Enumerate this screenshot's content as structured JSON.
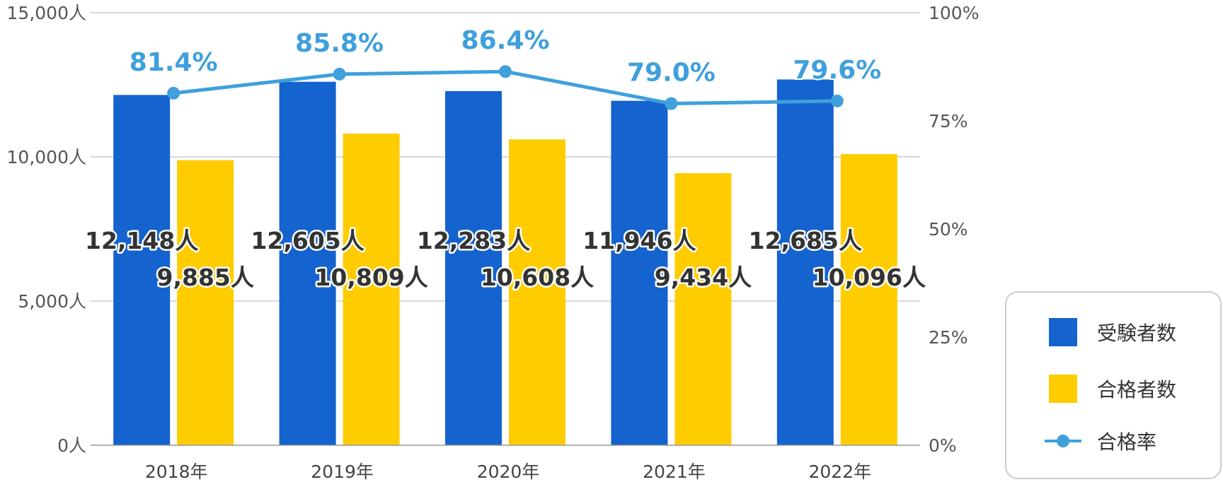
{
  "colors": {
    "examinees": "#1463CE",
    "passers": "#FFCC00",
    "rate": "#3FA0DC",
    "grid": "#cccccc"
  },
  "chart_data": {
    "type": "bar",
    "categories": [
      "2018年",
      "2019年",
      "2020年",
      "2021年",
      "2022年"
    ],
    "series": [
      {
        "name": "受験者数",
        "kind": "bar",
        "axis": "left",
        "values": [
          12148,
          12605,
          12283,
          11946,
          12685
        ],
        "labels": [
          "12,148人",
          "12,605人",
          "12,283人",
          "11,946人",
          "12,685人"
        ]
      },
      {
        "name": "合格者数",
        "kind": "bar",
        "axis": "left",
        "values": [
          9885,
          10809,
          10608,
          9434,
          10096
        ],
        "labels": [
          "9,885人",
          "10,809人",
          "10,608人",
          "9,434人",
          "10,096人"
        ]
      },
      {
        "name": "合格率",
        "kind": "line",
        "axis": "right",
        "values": [
          81.4,
          85.8,
          86.4,
          79.0,
          79.6
        ],
        "labels": [
          "81.4%",
          "85.8%",
          "86.4%",
          "79.0%",
          "79.6%"
        ]
      }
    ],
    "y_left": {
      "ylim": [
        0,
        15000
      ],
      "ticks": [
        0,
        5000,
        10000,
        15000
      ],
      "tick_labels": [
        "0人",
        "5,000人",
        "10,000人",
        "15,000人"
      ]
    },
    "y_right": {
      "ylim": [
        0,
        100
      ],
      "ticks": [
        0,
        25,
        50,
        75,
        100
      ],
      "tick_labels": [
        "0%",
        "25%",
        "50%",
        "75%",
        "100%"
      ]
    },
    "grid": true,
    "legend_position": "bottom-right"
  }
}
